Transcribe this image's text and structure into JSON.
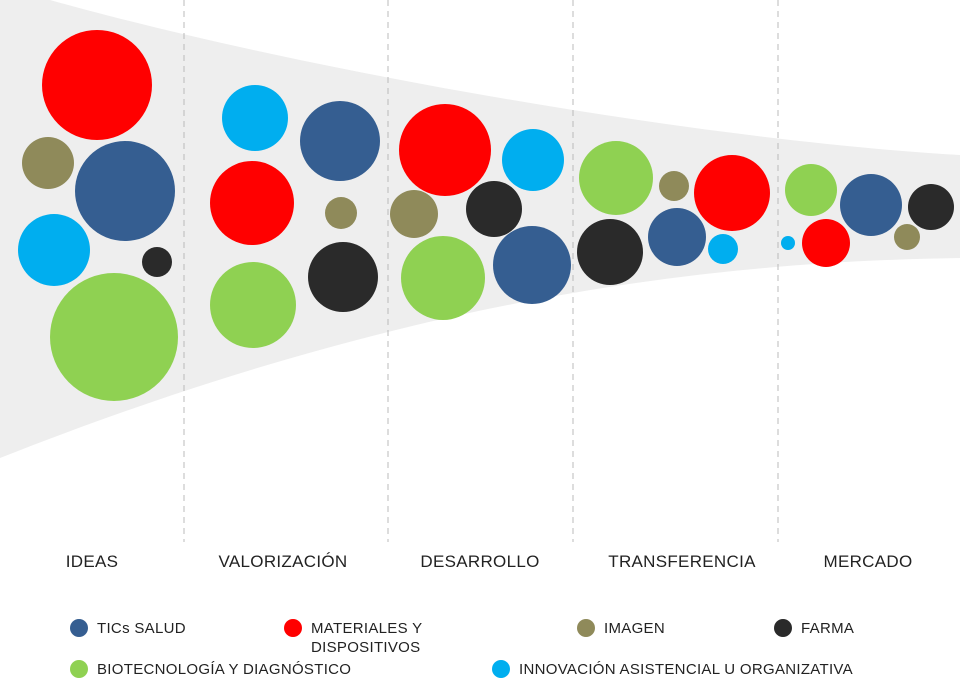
{
  "colors": {
    "tics_salud": "#355e91",
    "materiales": "#ff0000",
    "imagen": "#8f8a5a",
    "farma": "#2a2a2a",
    "biotecnologia": "#8fd152",
    "innovacion": "#00aeef",
    "funnel_fill": "#eeeeee",
    "divider": "#bbbbbb"
  },
  "stages": [
    "IDEAS",
    "VALORIZACIÓN",
    "DESARROLLO",
    "TRANSFERENCIA",
    "MERCADO"
  ],
  "legend": [
    {
      "key": "tics_salud",
      "label": "TICs SALUD"
    },
    {
      "key": "materiales",
      "label": "MATERIALES Y DISPOSITIVOS"
    },
    {
      "key": "imagen",
      "label": "IMAGEN"
    },
    {
      "key": "farma",
      "label": "FARMA"
    },
    {
      "key": "biotecnologia",
      "label": "BIOTECNOLOGÍA Y DIAGNÓSTICO"
    },
    {
      "key": "innovacion",
      "label": "INNOVACIÓN ASISTENCIAL U ORGANIZATIVA"
    }
  ]
}
